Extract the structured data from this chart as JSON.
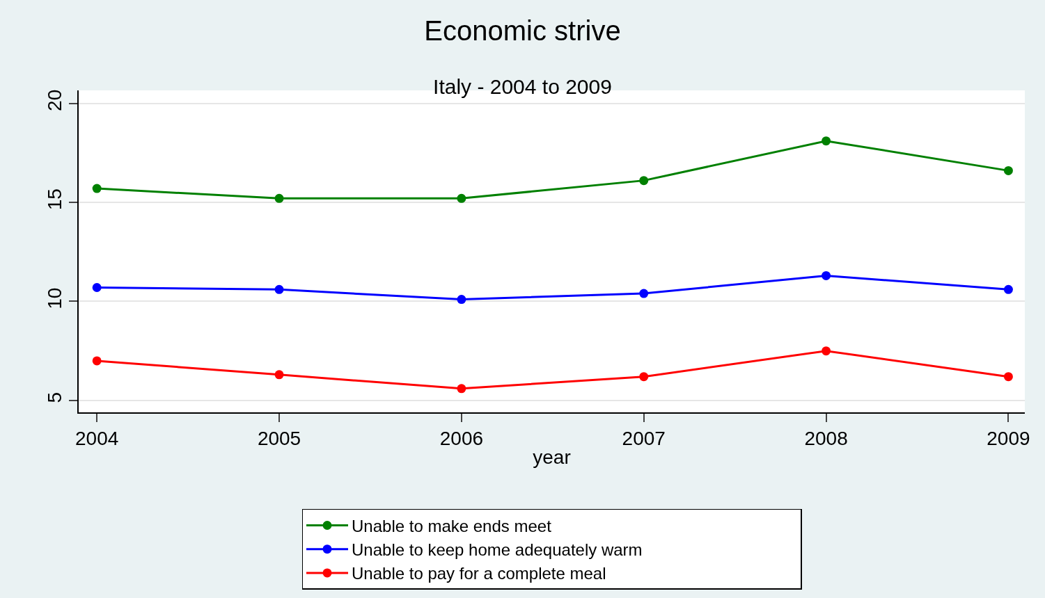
{
  "chart_data": {
    "type": "line",
    "title": "Economic strive",
    "subtitle": "Italy - 2004 to 2009",
    "xlabel": "year",
    "x": [
      2004,
      2005,
      2006,
      2007,
      2008,
      2009
    ],
    "series": [
      {
        "name": "Unable to make ends meet",
        "color": "#008000",
        "values": [
          15.7,
          15.2,
          15.2,
          16.1,
          18.1,
          16.6
        ]
      },
      {
        "name": "Unable to keep home adequately warm",
        "color": "#0000ff",
        "values": [
          10.7,
          10.6,
          10.1,
          10.4,
          11.3,
          10.6
        ]
      },
      {
        "name": "Unable to pay for a complete meal",
        "color": "#ff0000",
        "values": [
          7.0,
          6.3,
          5.6,
          6.2,
          7.5,
          6.2
        ]
      }
    ],
    "xlim": [
      2003.9,
      2009.09
    ],
    "xticks": [
      2004,
      2005,
      2006,
      2007,
      2008,
      2009
    ],
    "ylim": [
      4.4,
      20.65
    ],
    "yticks": [
      5,
      10,
      15,
      20
    ],
    "grid": "y",
    "legend": "bottom",
    "marker": "circle",
    "line_style": "solid"
  }
}
